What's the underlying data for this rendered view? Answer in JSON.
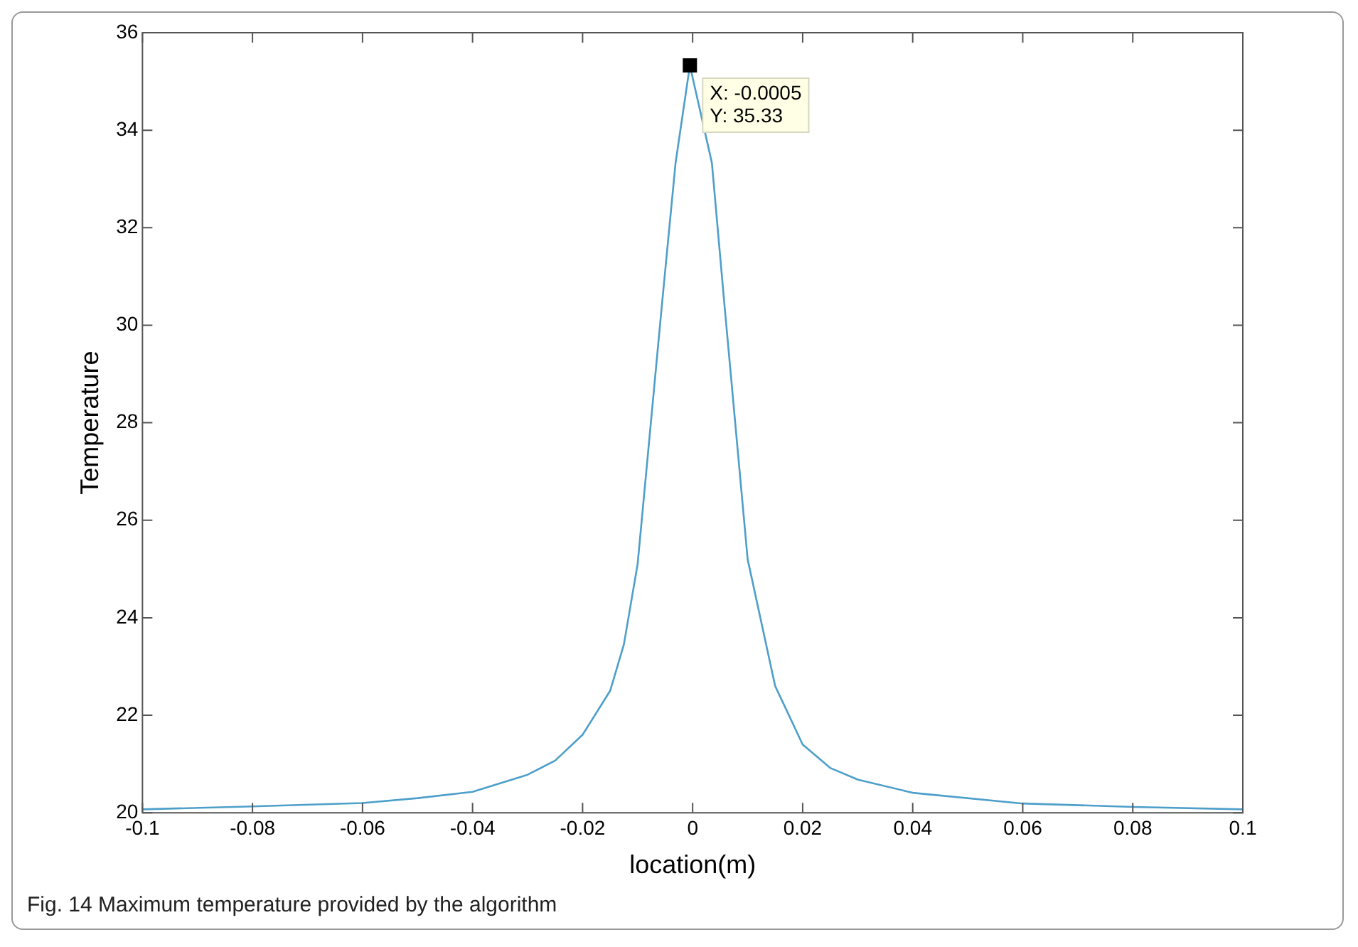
{
  "chart_data": {
    "type": "line",
    "xlabel": "location(m)",
    "ylabel": "Temperature",
    "x": [
      -0.1,
      -0.08,
      -0.06,
      -0.05,
      -0.04,
      -0.03,
      -0.025,
      -0.02,
      -0.015,
      -0.0125,
      -0.01,
      -0.0056,
      -0.0031,
      -0.0005,
      0.0035,
      0.0058,
      0.01,
      0.015,
      0.02,
      0.025,
      0.03,
      0.04,
      0.06,
      0.08,
      0.1
    ],
    "series": [
      {
        "color": "#4d9fca",
        "values": [
          20.07,
          20.13,
          20.2,
          20.3,
          20.43,
          20.78,
          21.07,
          21.6,
          22.5,
          23.45,
          25.1,
          30.4,
          33.33,
          35.33,
          33.33,
          30.4,
          25.2,
          22.6,
          21.4,
          20.92,
          20.68,
          20.41,
          20.19,
          20.12,
          20.07
        ]
      }
    ],
    "xlim": [
      -0.1,
      0.1
    ],
    "xticks": [
      -0.1,
      -0.08,
      -0.06,
      -0.04,
      -0.02,
      0,
      0.02,
      0.04,
      0.06,
      0.08,
      0.1
    ],
    "ylim": [
      20,
      36
    ],
    "yticks": [
      20,
      22,
      24,
      26,
      28,
      30,
      32,
      34,
      36
    ],
    "grid": false,
    "legend": false,
    "marker": "none",
    "line_style": "solid",
    "annotations": [
      {
        "text": "X: -0.0005\nY: 35.33",
        "x": -0.0005,
        "y": 35.33
      },
      "Fig. 14  Maximum temperature provided by the algorithm"
    ]
  }
}
